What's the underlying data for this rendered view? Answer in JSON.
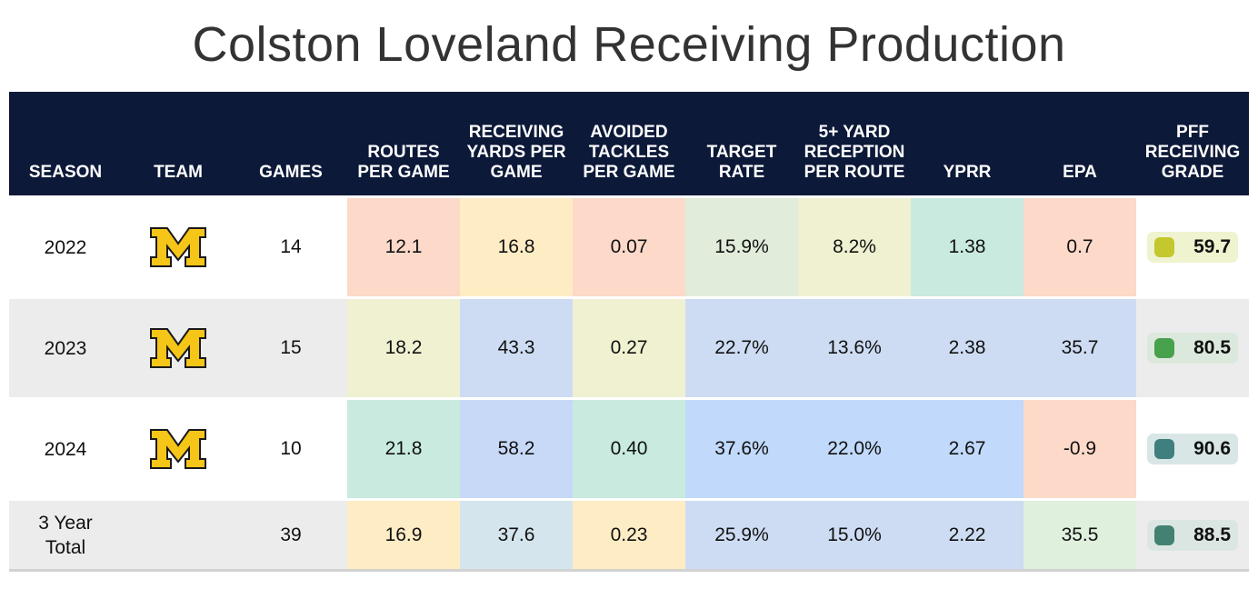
{
  "title": "Colston Loveland Receiving Production",
  "chart_data": {
    "type": "table",
    "columns": [
      "SEASON",
      "TEAM",
      "GAMES",
      "ROUTES PER GAME",
      "RECEIVING YARDS PER GAME",
      "AVOIDED TACKLES PER GAME",
      "TARGET RATE",
      "5+ YARD RECEPTION PER ROUTE",
      "YPRR",
      "EPA",
      "PFF RECEIVING GRADE"
    ],
    "rows": [
      {
        "season": "2022",
        "team_logo": "michigan-block-m-icon",
        "games": "14",
        "stats": [
          "12.1",
          "16.8",
          "0.07",
          "15.9%",
          "8.2%",
          "1.38",
          "0.7"
        ],
        "stat_colors": [
          "#fcd9c9",
          "#fdecc4",
          "#fcd9c9",
          "#e1ecda",
          "#eff1d1",
          "#c8eadf",
          "#fcd9c9"
        ],
        "grade": "59.7",
        "grade_dot": "#c4c72d",
        "grade_bg": "#eff3cf"
      },
      {
        "season": "2023",
        "team_logo": "michigan-block-m-icon",
        "games": "15",
        "stats": [
          "18.2",
          "43.3",
          "0.27",
          "22.7%",
          "13.6%",
          "2.38",
          "35.7"
        ],
        "stat_colors": [
          "#eff1d1",
          "#cddcf3",
          "#eff1d1",
          "#cddcf3",
          "#cddcf3",
          "#cddcf3",
          "#cddcf3"
        ],
        "grade": "80.5",
        "grade_dot": "#48a14d",
        "grade_bg": "#dbe8dc"
      },
      {
        "season": "2024",
        "team_logo": "michigan-block-m-icon",
        "games": "10",
        "stats": [
          "21.8",
          "58.2",
          "0.40",
          "37.6%",
          "22.0%",
          "2.67",
          "-0.9"
        ],
        "stat_colors": [
          "#c8eadf",
          "#c8d9f8",
          "#c8eadf",
          "#c1d9fb",
          "#c1d9fb",
          "#c1d9fb",
          "#fcd9c9"
        ],
        "grade": "90.6",
        "grade_dot": "#3f7f7e",
        "grade_bg": "#d9e6e6"
      },
      {
        "season": "3 Year Total",
        "team_logo": "",
        "games": "39",
        "stats": [
          "16.9",
          "37.6",
          "0.23",
          "25.9%",
          "15.0%",
          "2.22",
          "35.5"
        ],
        "stat_colors": [
          "#fdecc4",
          "#d4e5ed",
          "#fdecc4",
          "#cddcf3",
          "#cddcf3",
          "#cddcf3",
          "#dff0dd"
        ],
        "grade": "88.5",
        "grade_dot": "#438272",
        "grade_bg": "#dbe6e2"
      }
    ]
  },
  "colors": {
    "header_bg": "#0c1938",
    "logo_fill": "#f5c518",
    "logo_stroke": "#1a1a1a"
  }
}
